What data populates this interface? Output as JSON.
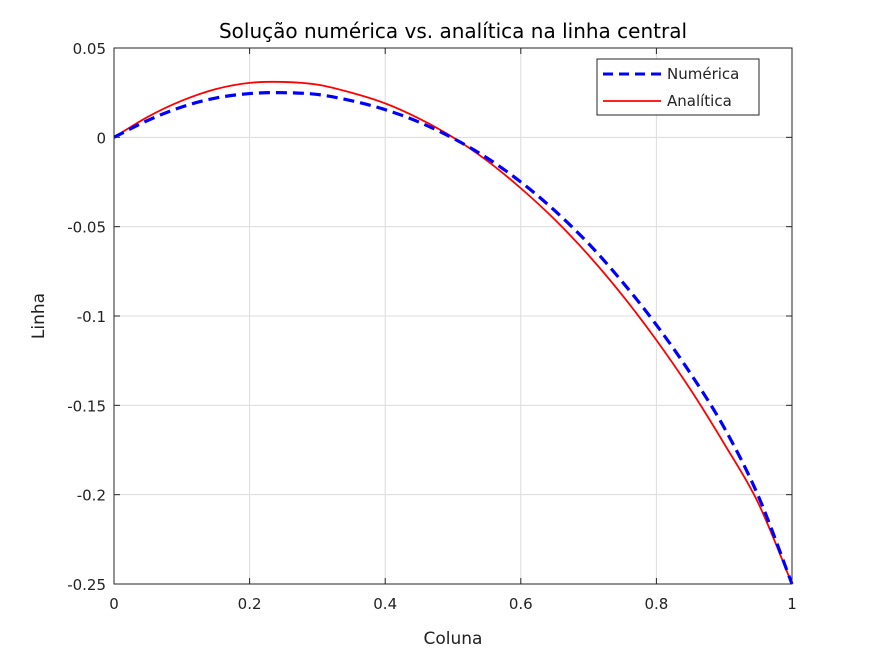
{
  "chart_data": {
    "type": "line",
    "title": "Solução numérica vs. analítica na linha central",
    "xlabel": "Coluna",
    "ylabel": "Linha",
    "xlim": [
      0,
      1
    ],
    "ylim": [
      -0.25,
      0.05
    ],
    "xticks": [
      "0",
      "0.2",
      "0.4",
      "0.6",
      "0.8",
      "1"
    ],
    "xtick_values": [
      0,
      0.2,
      0.4,
      0.6,
      0.8,
      1
    ],
    "yticks": [
      "0.05",
      "0",
      "-0.05",
      "-0.1",
      "-0.15",
      "-0.2",
      "-0.25"
    ],
    "ytick_values": [
      0.05,
      0,
      -0.05,
      -0.1,
      -0.15,
      -0.2,
      -0.25
    ],
    "grid": true,
    "legend_position": "top-right",
    "series": [
      {
        "name": "Numérica",
        "color": "#0000ff",
        "style": "dashed",
        "x": [
          0,
          0.05,
          0.1,
          0.15,
          0.2,
          0.25,
          0.3,
          0.35,
          0.4,
          0.45,
          0.5,
          0.55,
          0.6,
          0.65,
          0.7,
          0.75,
          0.8,
          0.85,
          0.9,
          0.95,
          1
        ],
        "y": [
          0,
          0.0095,
          0.017,
          0.022,
          0.0245,
          0.025,
          0.024,
          0.0205,
          0.0155,
          0.0085,
          -0.0005,
          -0.0115,
          -0.025,
          -0.041,
          -0.0595,
          -0.081,
          -0.105,
          -0.132,
          -0.1625,
          -0.2005,
          -0.25
        ]
      },
      {
        "name": "Analítica",
        "color": "#ff0000",
        "style": "solid",
        "x": [
          0,
          0.05,
          0.1,
          0.15,
          0.2,
          0.25,
          0.3,
          0.35,
          0.4,
          0.45,
          0.5,
          0.55,
          0.6,
          0.65,
          0.7,
          0.75,
          0.8,
          0.85,
          0.9,
          0.95,
          1
        ],
        "y": [
          0,
          0.0115,
          0.0205,
          0.027,
          0.0305,
          0.031,
          0.0295,
          0.025,
          0.019,
          0.0105,
          0,
          -0.013,
          -0.0285,
          -0.046,
          -0.066,
          -0.0885,
          -0.1135,
          -0.141,
          -0.1715,
          -0.2045,
          -0.25
        ]
      }
    ]
  }
}
